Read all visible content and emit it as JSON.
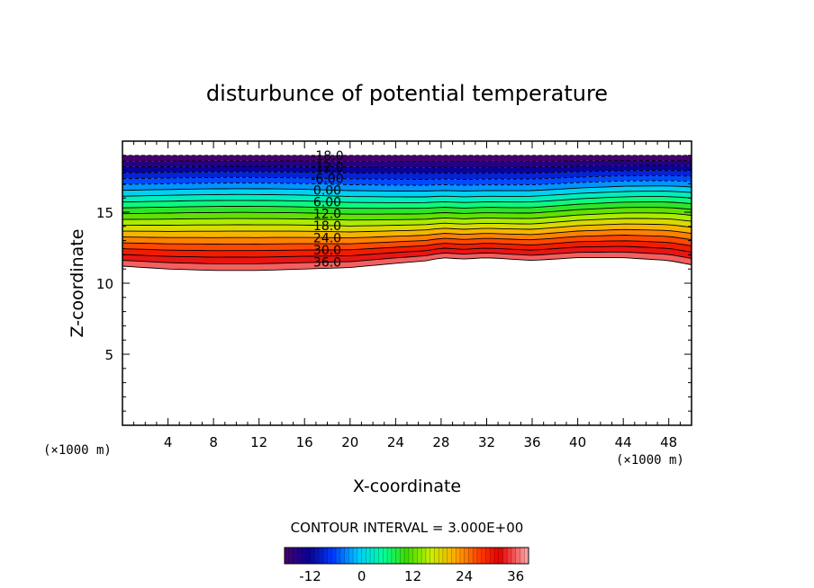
{
  "chart_data": {
    "type": "contour",
    "title": "disturbunce of potential temperature",
    "xlabel": "X-coordinate",
    "ylabel": "Z-coordinate",
    "x_unit_left": "(×1000 m)",
    "x_unit_right": "(×1000 m)",
    "xlim": [
      0,
      50
    ],
    "ylim": [
      0,
      20
    ],
    "x_ticks": [
      4,
      8,
      12,
      16,
      20,
      24,
      28,
      32,
      36,
      40,
      44,
      48
    ],
    "y_ticks": [
      5,
      10,
      15
    ],
    "contour_interval_text": "CONTOUR INTERVAL = 3.000E+00",
    "contour_levels": [
      -18,
      -15,
      -12,
      -9,
      -6,
      -3,
      0,
      3,
      6,
      9,
      12,
      15,
      18,
      21,
      24,
      27,
      30,
      33,
      36,
      39
    ],
    "negative_contour_style": "dashed",
    "contour_labels": [
      "-18.0",
      "-12.0",
      "-6.00",
      "0.00",
      "6.00",
      "12.0",
      "18.0",
      "24.0",
      "30.0",
      "36.0"
    ],
    "field_upper_bound_z": 19.0,
    "field_lower_bound_profile": {
      "x": [
        0,
        4,
        8,
        12,
        16,
        20,
        24,
        27,
        28,
        30,
        32,
        36,
        40,
        44,
        48,
        50
      ],
      "z": [
        11.2,
        11.0,
        10.9,
        10.9,
        11.0,
        11.1,
        11.4,
        11.6,
        11.8,
        11.7,
        11.8,
        11.6,
        11.8,
        11.8,
        11.6,
        11.3
      ]
    },
    "colorbar": {
      "min": -18,
      "max": 39,
      "tick_values": [
        -12,
        0,
        12,
        24,
        36
      ],
      "tick_labels": [
        "-12",
        "0",
        "12",
        "24",
        "36"
      ]
    }
  }
}
